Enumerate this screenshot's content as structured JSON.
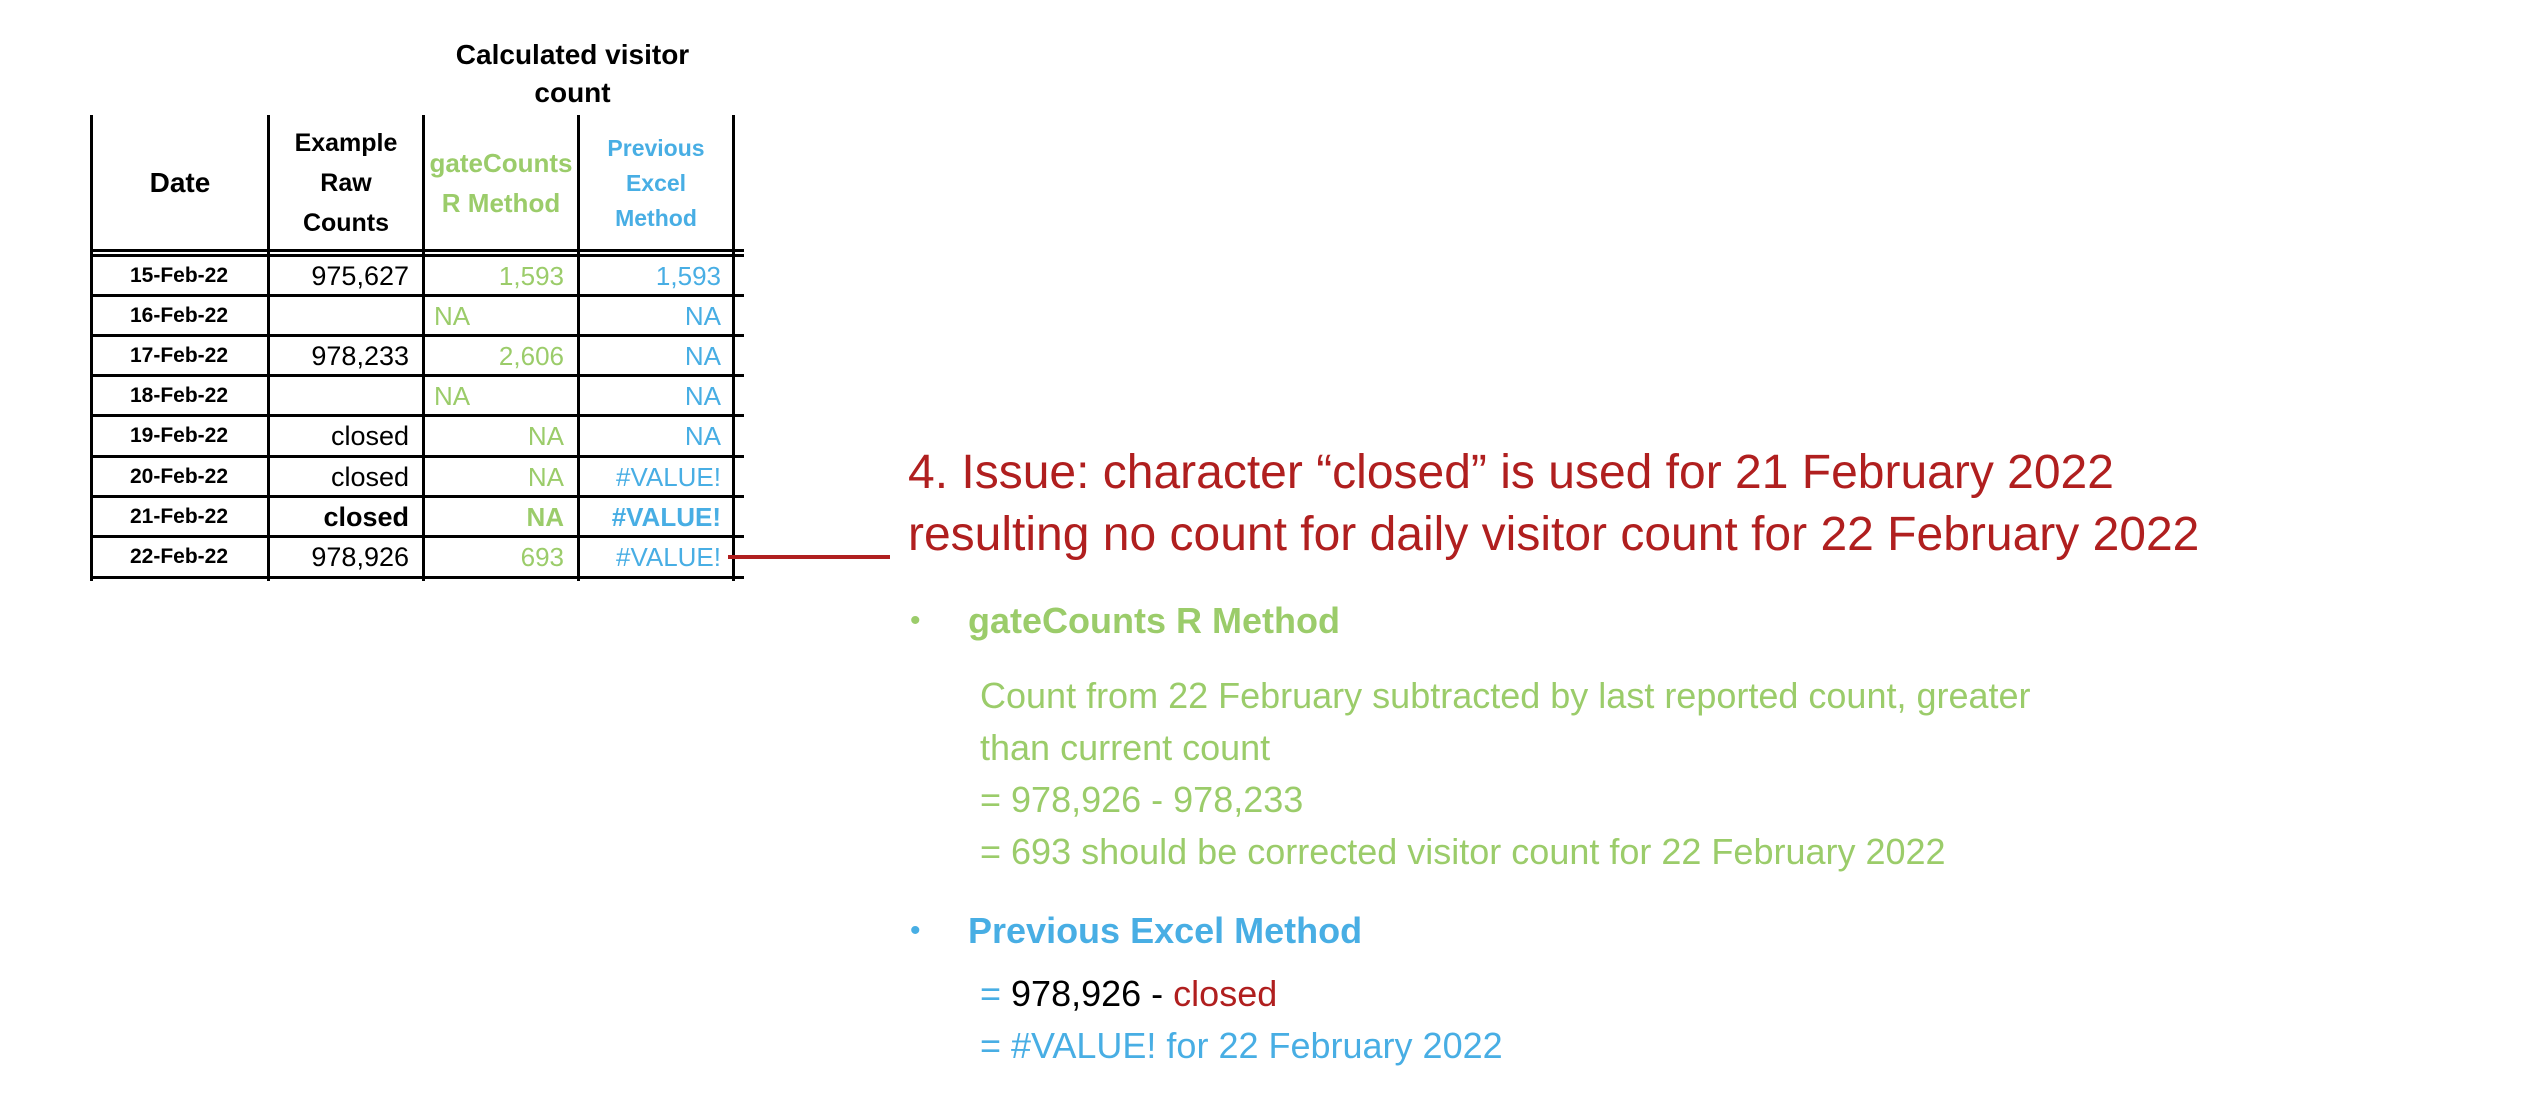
{
  "table": {
    "group_header": "Calculated visitor count",
    "columns": {
      "date": "Date",
      "raw": [
        "Example",
        "Raw",
        "Counts"
      ],
      "r_method": [
        "gateCounts",
        "R Method"
      ],
      "excel_method": [
        "Previous",
        "Excel",
        "Method"
      ]
    },
    "rows": [
      {
        "date": "15-Feb-22",
        "raw": "975,627",
        "r": "1,593",
        "excel": "1,593"
      },
      {
        "date": "16-Feb-22",
        "raw": "",
        "r": "NA",
        "excel": "NA"
      },
      {
        "date": "17-Feb-22",
        "raw": "978,233",
        "r": "2,606",
        "excel": "NA"
      },
      {
        "date": "18-Feb-22",
        "raw": "",
        "r": "NA",
        "excel": "NA"
      },
      {
        "date": "19-Feb-22",
        "raw": "closed",
        "r": "NA",
        "excel": "NA"
      },
      {
        "date": "20-Feb-22",
        "raw": "closed",
        "r": "NA",
        "excel": "#VALUE!"
      },
      {
        "date": "21-Feb-22",
        "raw": "closed",
        "r": "NA",
        "excel": "#VALUE!"
      },
      {
        "date": "22-Feb-22",
        "raw": "978,926",
        "r": "693",
        "excel": "#VALUE!"
      }
    ]
  },
  "issue": {
    "line1": "4. Issue: character “closed” is used for 21 February 2022",
    "line2": "resulting no count for daily visitor count for 22 February 2022"
  },
  "r_method": {
    "bullet": "•",
    "title": "gateCounts R Method",
    "lines": [
      "Count from 22 February  subtracted by last reported count, greater",
      "than current count",
      "= 978,926 - 978,233",
      "= 693 should be corrected visitor count for 22 February 2022"
    ]
  },
  "excel_method": {
    "bullet": "•",
    "title": "Previous Excel Method",
    "line1_eq": "= ",
    "line1_value": "978,926",
    "line1_minus": " - ",
    "line1_closed": "closed",
    "line2": "= #VALUE! for 22 February 2022"
  },
  "colors": {
    "issue_red": "#b01f1f",
    "r_method_green": "#9bcc6a",
    "excel_method_blue": "#48aee4"
  }
}
